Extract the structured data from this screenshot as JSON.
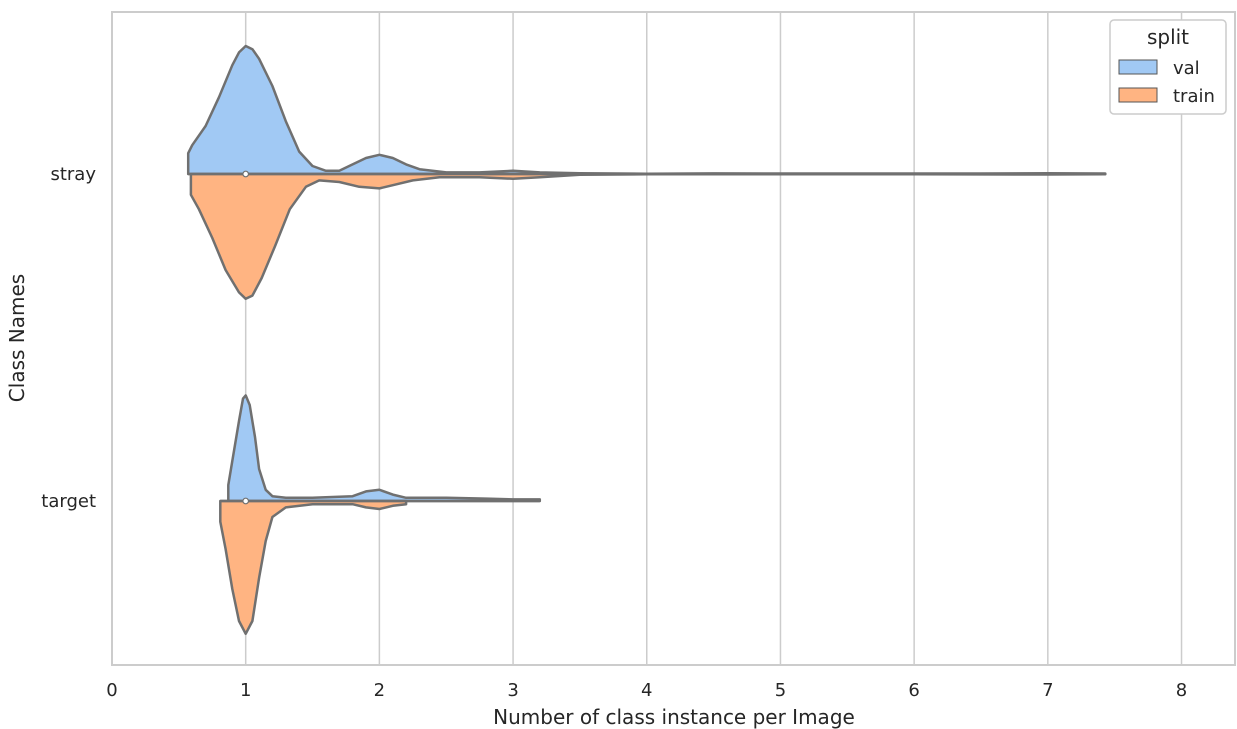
{
  "chart_data": {
    "type": "violin",
    "orientation": "horizontal",
    "split": true,
    "xlabel": "Number of class instance per Image",
    "ylabel": "Class Names",
    "xlim": [
      0,
      8.4
    ],
    "xticks": [
      0,
      1,
      2,
      3,
      4,
      5,
      6,
      7,
      8
    ],
    "xtick_labels": [
      "0",
      "1",
      "2",
      "3",
      "4",
      "5",
      "6",
      "7",
      "8"
    ],
    "grid": "vertical",
    "categories": [
      "stray",
      "target"
    ],
    "legend": {
      "title": "split",
      "position": "top-right",
      "entries": [
        {
          "label": "val",
          "color": "#a1c9f4"
        },
        {
          "label": "train",
          "color": "#ffb482"
        }
      ]
    },
    "series": [
      {
        "name": "val",
        "color": "#a1c9f4",
        "violins": [
          {
            "category": "stray",
            "median": 1,
            "range": [
              0.57,
              7.43
            ],
            "density": [
              [
                0.57,
                0.13
              ],
              [
                0.6,
                0.18
              ],
              [
                0.7,
                0.3
              ],
              [
                0.8,
                0.48
              ],
              [
                0.9,
                0.68
              ],
              [
                0.95,
                0.76
              ],
              [
                1.0,
                0.8
              ],
              [
                1.05,
                0.78
              ],
              [
                1.1,
                0.72
              ],
              [
                1.2,
                0.55
              ],
              [
                1.3,
                0.33
              ],
              [
                1.4,
                0.14
              ],
              [
                1.5,
                0.05
              ],
              [
                1.6,
                0.02
              ],
              [
                1.7,
                0.02
              ],
              [
                1.8,
                0.06
              ],
              [
                1.9,
                0.1
              ],
              [
                2.0,
                0.12
              ],
              [
                2.1,
                0.1
              ],
              [
                2.2,
                0.06
              ],
              [
                2.3,
                0.03
              ],
              [
                2.5,
                0.01
              ],
              [
                2.75,
                0.01
              ],
              [
                3.0,
                0.02
              ],
              [
                3.2,
                0.01
              ],
              [
                3.5,
                0.005
              ],
              [
                4.0,
                0.002
              ],
              [
                4.5,
                0.004
              ],
              [
                5.0,
                0.003
              ],
              [
                5.5,
                0.003
              ],
              [
                6.0,
                0.003
              ],
              [
                6.5,
                0.003
              ],
              [
                7.0,
                0.005
              ],
              [
                7.2,
                0.004
              ],
              [
                7.43,
                0.003
              ]
            ]
          },
          {
            "category": "target",
            "median": 1,
            "range": [
              0.87,
              3.2
            ],
            "density": [
              [
                0.87,
                0.1
              ],
              [
                0.9,
                0.25
              ],
              [
                0.95,
                0.5
              ],
              [
                0.98,
                0.64
              ],
              [
                1.0,
                0.66
              ],
              [
                1.03,
                0.6
              ],
              [
                1.07,
                0.4
              ],
              [
                1.1,
                0.2
              ],
              [
                1.15,
                0.07
              ],
              [
                1.2,
                0.03
              ],
              [
                1.3,
                0.02
              ],
              [
                1.5,
                0.02
              ],
              [
                1.8,
                0.03
              ],
              [
                1.9,
                0.06
              ],
              [
                2.0,
                0.07
              ],
              [
                2.1,
                0.04
              ],
              [
                2.2,
                0.02
              ],
              [
                2.5,
                0.02
              ],
              [
                2.8,
                0.015
              ],
              [
                3.0,
                0.01
              ],
              [
                3.2,
                0.01
              ]
            ]
          }
        ]
      },
      {
        "name": "train",
        "color": "#ffb482",
        "violins": [
          {
            "category": "stray",
            "median": 1,
            "range": [
              0.59,
              7.43
            ],
            "density": [
              [
                0.59,
                0.13
              ],
              [
                0.65,
                0.22
              ],
              [
                0.75,
                0.4
              ],
              [
                0.85,
                0.6
              ],
              [
                0.95,
                0.74
              ],
              [
                1.0,
                0.78
              ],
              [
                1.05,
                0.76
              ],
              [
                1.12,
                0.65
              ],
              [
                1.22,
                0.45
              ],
              [
                1.33,
                0.22
              ],
              [
                1.45,
                0.08
              ],
              [
                1.55,
                0.04
              ],
              [
                1.7,
                0.05
              ],
              [
                1.85,
                0.08
              ],
              [
                2.0,
                0.09
              ],
              [
                2.1,
                0.07
              ],
              [
                2.25,
                0.04
              ],
              [
                2.45,
                0.02
              ],
              [
                2.75,
                0.02
              ],
              [
                3.0,
                0.03
              ],
              [
                3.2,
                0.02
              ],
              [
                3.5,
                0.005
              ],
              [
                4.0,
                0.002
              ],
              [
                5.0,
                0.002
              ],
              [
                6.0,
                0.002
              ],
              [
                7.0,
                0.003
              ],
              [
                7.43,
                0.002
              ]
            ]
          },
          {
            "category": "target",
            "median": 1,
            "range": [
              0.81,
              2.2
            ],
            "density": [
              [
                0.81,
                0.13
              ],
              [
                0.85,
                0.3
              ],
              [
                0.9,
                0.55
              ],
              [
                0.95,
                0.75
              ],
              [
                1.0,
                0.83
              ],
              [
                1.05,
                0.75
              ],
              [
                1.1,
                0.48
              ],
              [
                1.15,
                0.25
              ],
              [
                1.2,
                0.1
              ],
              [
                1.3,
                0.04
              ],
              [
                1.5,
                0.02
              ],
              [
                1.8,
                0.02
              ],
              [
                1.9,
                0.04
              ],
              [
                2.0,
                0.05
              ],
              [
                2.1,
                0.03
              ],
              [
                2.2,
                0.02
              ]
            ]
          }
        ]
      }
    ]
  }
}
